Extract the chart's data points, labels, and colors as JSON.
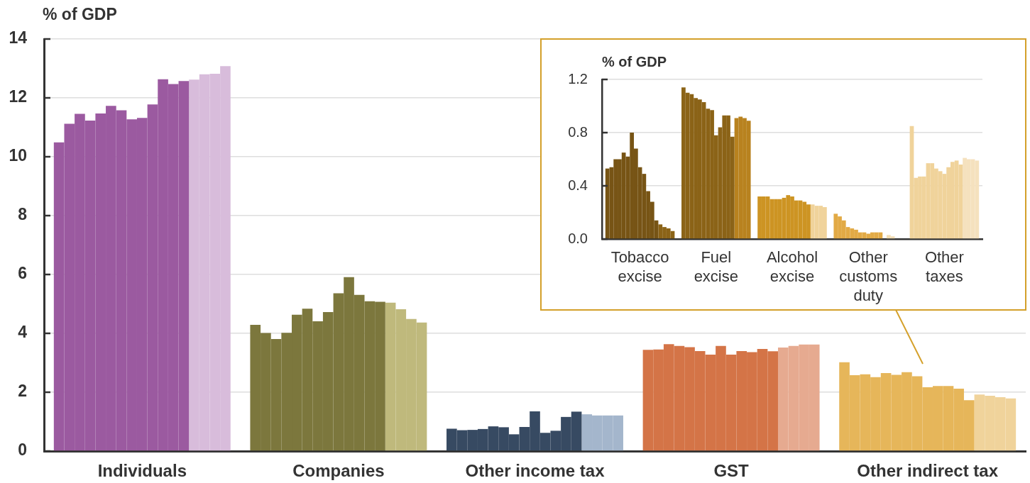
{
  "chart_data": [
    {
      "type": "bar",
      "ylabel": "% of GDP",
      "categories": [
        "Individuals",
        "Companies",
        "Other income tax",
        "GST",
        "Other indirect tax"
      ],
      "series": [
        {
          "colors": [
            "#9b5aa0",
            "#7c773d",
            "#374a62",
            "#d47447",
            "#e6b65a"
          ],
          "values": [
            10.49,
            4.29,
            0.76,
            3.44,
            3.02
          ]
        },
        {
          "colors": [
            "#9b5aa0",
            "#7c773d",
            "#374a62",
            "#d47447",
            "#e6b65a"
          ],
          "values": [
            11.12,
            4.01,
            0.71,
            3.45,
            2.58
          ]
        },
        {
          "colors": [
            "#9b5aa0",
            "#7c773d",
            "#374a62",
            "#d47447",
            "#e6b65a"
          ],
          "values": [
            11.46,
            3.81,
            0.72,
            3.63,
            2.61
          ]
        },
        {
          "colors": [
            "#9b5aa0",
            "#7c773d",
            "#374a62",
            "#d47447",
            "#e6b65a"
          ],
          "values": [
            11.23,
            4.02,
            0.75,
            3.57,
            2.51
          ]
        },
        {
          "colors": [
            "#9b5aa0",
            "#7c773d",
            "#374a62",
            "#d47447",
            "#e6b65a"
          ],
          "values": [
            11.47,
            4.63,
            0.84,
            3.53,
            2.65
          ]
        },
        {
          "colors": [
            "#9b5aa0",
            "#7c773d",
            "#374a62",
            "#d47447",
            "#e6b65a"
          ],
          "values": [
            11.73,
            4.84,
            0.81,
            3.4,
            2.59
          ]
        },
        {
          "colors": [
            "#9b5aa0",
            "#7c773d",
            "#374a62",
            "#d47447",
            "#e6b65a"
          ],
          "values": [
            11.58,
            4.41,
            0.57,
            3.28,
            2.68
          ]
        },
        {
          "colors": [
            "#9b5aa0",
            "#7c773d",
            "#374a62",
            "#d47447",
            "#e6b65a"
          ],
          "values": [
            11.27,
            4.72,
            0.82,
            3.57,
            2.54
          ]
        },
        {
          "colors": [
            "#9b5aa0",
            "#7c773d",
            "#374a62",
            "#d47447",
            "#e6b65a"
          ],
          "values": [
            11.32,
            5.36,
            1.35,
            3.28,
            2.17
          ]
        },
        {
          "colors": [
            "#9b5aa0",
            "#7c773d",
            "#374a62",
            "#d47447",
            "#e6b65a"
          ],
          "values": [
            11.78,
            5.91,
            0.62,
            3.4,
            2.21
          ]
        },
        {
          "colors": [
            "#9b5aa0",
            "#7c773d",
            "#374a62",
            "#d47447",
            "#e6b65a"
          ],
          "values": [
            12.63,
            5.31,
            0.69,
            3.36,
            2.21
          ]
        },
        {
          "colors": [
            "#9b5aa0",
            "#7c773d",
            "#374a62",
            "#d47447",
            "#e6b65a"
          ],
          "values": [
            12.47,
            5.09,
            1.16,
            3.47,
            2.12
          ]
        },
        {
          "colors": [
            "#9b5aa0",
            "#7c773d",
            "#374a62",
            "#d47447",
            "#e6b65a"
          ],
          "values": [
            12.57,
            5.07,
            1.34,
            3.39,
            1.73
          ]
        },
        {
          "colors": [
            "#d8bcdb",
            "#bfb97c",
            "#a4b6cc",
            "#e6aa90",
            "#f0d39b"
          ],
          "values": [
            12.62,
            5.04,
            1.25,
            3.52,
            1.92
          ]
        },
        {
          "colors": [
            "#d8bcdb",
            "#bfb97c",
            "#a4b6cc",
            "#e6aa90",
            "#f0d39b"
          ],
          "values": [
            12.8,
            4.82,
            1.21,
            3.57,
            1.88
          ]
        },
        {
          "colors": [
            "#d8bcdb",
            "#bfb97c",
            "#a4b6cc",
            "#e6aa90",
            "#f0d39b"
          ],
          "values": [
            12.82,
            4.49,
            1.21,
            3.62,
            1.83
          ]
        },
        {
          "colors": [
            "#d8bcdb",
            "#bfb97c",
            "#a4b6cc",
            "#e6aa90",
            "#f0d39b"
          ],
          "values": [
            13.08,
            4.37,
            1.21,
            3.62,
            1.79
          ]
        }
      ],
      "ylim": [
        0,
        14
      ],
      "yticks": [
        0,
        2,
        4,
        6,
        8,
        10,
        12,
        14
      ],
      "grid": "y",
      "legend": false
    },
    {
      "type": "bar",
      "ylabel": "% of GDP",
      "categories": [
        "Tobacco excise",
        "Fuel excise",
        "Alcohol excise",
        "Other customs duty",
        "Other taxes"
      ],
      "series": [
        {
          "colors": [
            "#775415",
            "#8b6317",
            "#cd9423",
            "#e2aa45",
            "#f0d39b"
          ],
          "values": [
            0.53,
            1.14,
            0.32,
            0.19,
            0.85
          ]
        },
        {
          "colors": [
            "#775415",
            "#8b6317",
            "#cd9423",
            "#e2aa45",
            "#f0d39b"
          ],
          "values": [
            0.54,
            1.1,
            0.32,
            0.17,
            0.46
          ]
        },
        {
          "colors": [
            "#775415",
            "#8b6317",
            "#cd9423",
            "#e2aa45",
            "#f0d39b"
          ],
          "values": [
            0.6,
            1.09,
            0.32,
            0.14,
            0.47
          ]
        },
        {
          "colors": [
            "#775415",
            "#8b6317",
            "#cd9423",
            "#e2aa45",
            "#f0d39b"
          ],
          "values": [
            0.6,
            1.06,
            0.3,
            0.09,
            0.47
          ]
        },
        {
          "colors": [
            "#775415",
            "#8b6317",
            "#cd9423",
            "#e2aa45",
            "#f0d39b"
          ],
          "values": [
            0.65,
            1.05,
            0.3,
            0.08,
            0.57
          ]
        },
        {
          "colors": [
            "#775415",
            "#8b6317",
            "#cd9423",
            "#e2aa45",
            "#f0d39b"
          ],
          "values": [
            0.62,
            1.03,
            0.3,
            0.07,
            0.57
          ]
        },
        {
          "colors": [
            "#775415",
            "#8b6317",
            "#cd9423",
            "#e2aa45",
            "#f0d39b"
          ],
          "values": [
            0.8,
            0.98,
            0.31,
            0.05,
            0.53
          ]
        },
        {
          "colors": [
            "#775415",
            "#8b6317",
            "#cd9423",
            "#e2aa45",
            "#f0d39b"
          ],
          "values": [
            0.68,
            0.97,
            0.33,
            0.05,
            0.51
          ]
        },
        {
          "colors": [
            "#775415",
            "#8b6317",
            "#cd9423",
            "#e2aa45",
            "#f0d39b"
          ],
          "values": [
            0.54,
            0.78,
            0.32,
            0.04,
            0.49
          ]
        },
        {
          "colors": [
            "#775415",
            "#8b6317",
            "#cd9423",
            "#e2aa45",
            "#f0d39b"
          ],
          "values": [
            0.49,
            0.84,
            0.29,
            0.05,
            0.54
          ]
        },
        {
          "colors": [
            "#775415",
            "#8b6317",
            "#cd9423",
            "#e2aa45",
            "#f0d39b"
          ],
          "values": [
            0.36,
            0.93,
            0.29,
            0.05,
            0.58
          ]
        },
        {
          "colors": [
            "#775415",
            "#8b6317",
            "#cd9423",
            "#e2aa45",
            "#f0d39b"
          ],
          "values": [
            0.28,
            0.93,
            0.28,
            0.05,
            0.59
          ]
        },
        {
          "colors": [
            "#775415",
            "#8b6317",
            "#cd9423",
            "#e2aa45",
            "#f0d39b"
          ],
          "values": [
            0.14,
            0.77,
            0.26,
            0,
            0.56
          ]
        },
        {
          "colors": [
            "#8b6317",
            "#b8821f",
            "#f0d39b",
            "#f3deb3",
            "#f5e1be"
          ],
          "values": [
            0.11,
            0.91,
            0.26,
            0.03,
            0.61
          ]
        },
        {
          "colors": [
            "#8b6317",
            "#b8821f",
            "#f0d39b",
            "#f3deb3",
            "#f5e1be"
          ],
          "values": [
            0.09,
            0.92,
            0.25,
            0.02,
            0.6
          ]
        },
        {
          "colors": [
            "#8b6317",
            "#b8821f",
            "#f0d39b",
            "#f3deb3",
            "#f5e1be"
          ],
          "values": [
            0.08,
            0.91,
            0.25,
            0,
            0.6
          ]
        },
        {
          "colors": [
            "#8b6317",
            "#b8821f",
            "#f0d39b",
            "#f3deb3",
            "#f5e1be"
          ],
          "values": [
            0.06,
            0.89,
            0.24,
            0,
            0.59
          ]
        }
      ],
      "ylim": [
        0,
        1.2
      ],
      "yticks": [
        {
          "value": 0,
          "label": "0.0"
        },
        0.4,
        0.8,
        1.2
      ],
      "grid": "y",
      "legend": false
    }
  ]
}
